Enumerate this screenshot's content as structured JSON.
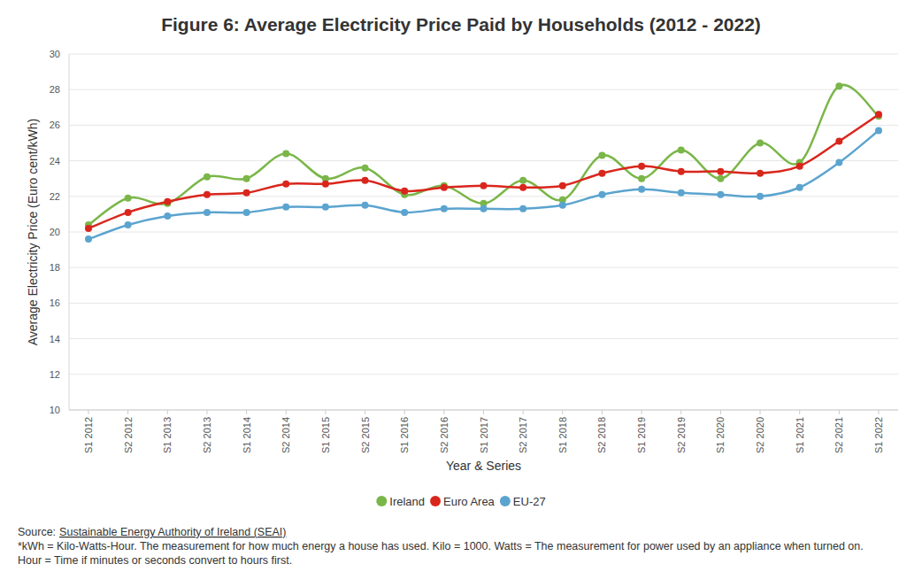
{
  "chart_data": {
    "type": "line",
    "title": "Figure 6: Average Electricity Price Paid by Households (2012 - 2022)",
    "y_label": "Average Electricity Price (Euro cent/kWh)",
    "x_label": "Year & Series",
    "categories": [
      "S1 2012",
      "S2 2012",
      "S1 2013",
      "S2 2013",
      "S1 2014",
      "S2 2014",
      "S1 2015",
      "S2 2015",
      "S1 2016",
      "S2 2016",
      "S1 2017",
      "S2 2017",
      "S1 2018",
      "S2 2018",
      "S1 2019",
      "S2 2019",
      "S1 2020",
      "S2 2020",
      "S1 2021",
      "S2 2021",
      "S1 2022"
    ],
    "series": [
      {
        "name": "Ireland",
        "color": "#7ab648",
        "marker": "circle",
        "line_style": "smooth",
        "values": [
          20.4,
          21.9,
          21.6,
          23.1,
          23.0,
          24.4,
          23.0,
          23.6,
          22.1,
          22.6,
          21.6,
          22.9,
          21.8,
          24.3,
          23.0,
          24.6,
          23.0,
          25.0,
          23.9,
          28.2,
          26.5
        ]
      },
      {
        "name": "Euro Area",
        "color": "#d9261c",
        "marker": "circle",
        "line_style": "smooth",
        "values": [
          20.2,
          21.1,
          21.7,
          22.1,
          22.2,
          22.7,
          22.7,
          22.9,
          22.3,
          22.5,
          22.6,
          22.5,
          22.6,
          23.3,
          23.7,
          23.4,
          23.4,
          23.3,
          23.7,
          25.1,
          26.6
        ]
      },
      {
        "name": "EU-27",
        "color": "#5ba4cf",
        "marker": "circle",
        "line_style": "smooth",
        "values": [
          19.6,
          20.4,
          20.9,
          21.1,
          21.1,
          21.4,
          21.4,
          21.5,
          21.1,
          21.3,
          21.3,
          21.3,
          21.5,
          22.1,
          22.4,
          22.2,
          22.1,
          22.0,
          22.5,
          23.9,
          25.7
        ]
      }
    ],
    "ylim": [
      10,
      30
    ],
    "yticks": [
      10,
      12,
      14,
      16,
      18,
      20,
      22,
      24,
      26,
      28,
      30
    ],
    "grid": true,
    "legend": "bottom",
    "source_label": "Source:",
    "source": "Sustainable Energy Authority of Ireland (SEAI)",
    "notes": [
      "*kWh = Kilo-Watts-Hour. The measurement for how much energy a house has used. Kilo = 1000. Watts = The measurement for power used by an appliance when turned on.",
      "Hour = Time if minutes or seconds convert to hours first."
    ]
  }
}
